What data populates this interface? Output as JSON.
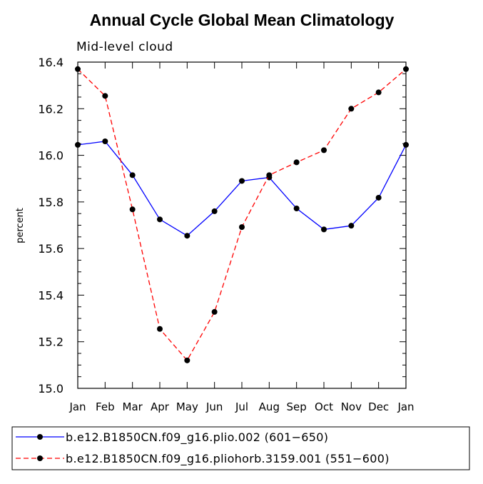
{
  "chart_data": {
    "type": "line",
    "title": "Annual Cycle Global Mean Climatology",
    "subtitle": "Mid-level cloud",
    "xlabel": "",
    "ylabel": "percent",
    "categories": [
      "Jan",
      "Feb",
      "Mar",
      "Apr",
      "May",
      "Jun",
      "Jul",
      "Aug",
      "Sep",
      "Oct",
      "Nov",
      "Dec",
      "Jan"
    ],
    "ylim": [
      15.0,
      16.4
    ],
    "yticks": [
      "15.0",
      "15.2",
      "15.4",
      "15.6",
      "15.8",
      "16.0",
      "16.2",
      "16.4"
    ],
    "series": [
      {
        "name": "b.e12.B1850CN.f09_g16.plio.002 (601−650)",
        "color": "#0000ff",
        "dash": "solid",
        "values": [
          16.045,
          16.06,
          15.915,
          15.725,
          15.655,
          15.76,
          15.89,
          15.905,
          15.772,
          15.682,
          15.698,
          15.818,
          16.045
        ]
      },
      {
        "name": "b.e12.B1850CN.f09_g16.pliohorb.3159.001 (551−600)",
        "color": "#ff0000",
        "dash": "dashed",
        "values": [
          16.37,
          16.255,
          15.768,
          15.255,
          15.12,
          15.328,
          15.692,
          15.915,
          15.97,
          16.022,
          16.2,
          16.27,
          16.37
        ]
      }
    ]
  }
}
